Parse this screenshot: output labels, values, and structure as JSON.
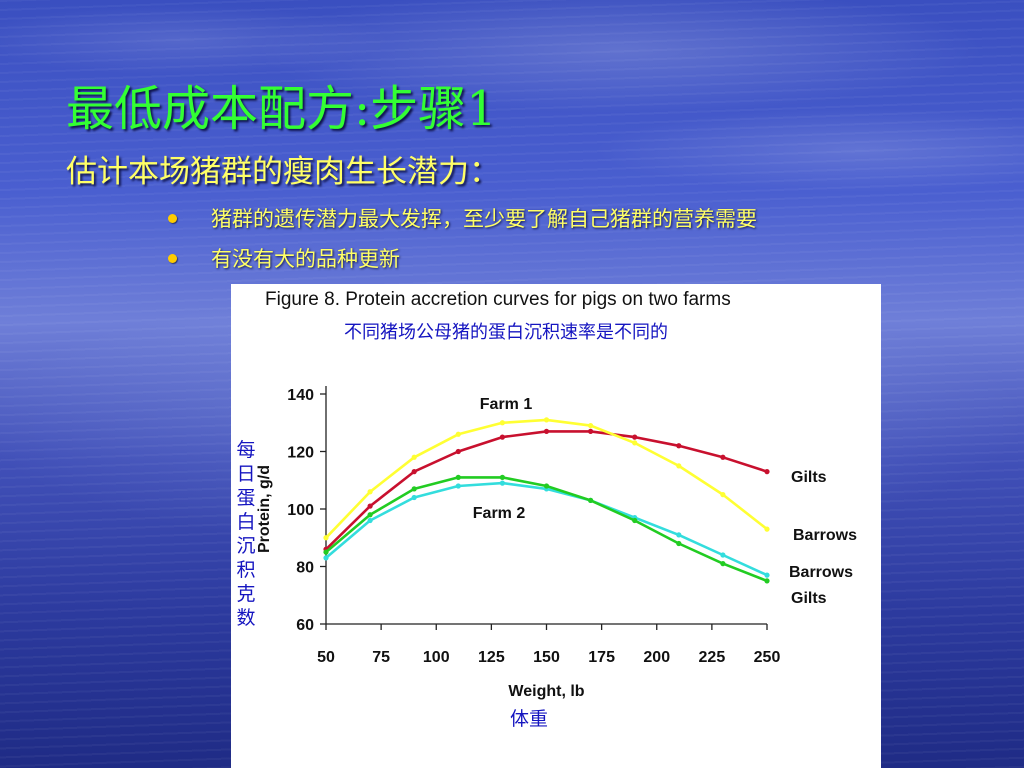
{
  "slide": {
    "title": "最低成本配方:步骤1",
    "subtitle": "估计本场猪群的瘦肉生长潜力：",
    "bullets": [
      "猪群的遗传潜力最大发挥，至少要了解自己猪群的营养需要",
      "有没有大的品种更新"
    ],
    "colors": {
      "title": "#33ff33",
      "subtitle": "#ffff66",
      "bullet_dot": "#ffcc00",
      "annotation": "#1515c0"
    }
  },
  "figure": {
    "title": "Figure 8. Protein accretion curves for pigs on two farms",
    "subtitle_zh": "不同猪场公母猪的蛋白沉积速率是不同的",
    "ylabel_zh": "每日蛋白沉积克数",
    "xlabel_zh": "体重"
  },
  "chart_data": {
    "type": "line",
    "xlabel": "Weight, lb",
    "ylabel": "Protein, g/d",
    "xlim": [
      50,
      250
    ],
    "ylim": [
      60,
      140
    ],
    "xticks": [
      50,
      75,
      100,
      125,
      150,
      175,
      200,
      225,
      250
    ],
    "yticks": [
      60,
      80,
      100,
      120,
      140
    ],
    "grid": false,
    "annotations": [
      "Farm 1",
      "Farm 2"
    ],
    "x": [
      50,
      70,
      90,
      110,
      130,
      150,
      170,
      190,
      210,
      230,
      250
    ],
    "series": [
      {
        "name": "Gilts",
        "group": "Farm 1",
        "color": "#c8102e",
        "values": [
          86,
          101,
          113,
          120,
          125,
          127,
          127,
          125,
          122,
          118,
          113
        ]
      },
      {
        "name": "Barrows",
        "group": "Farm 1",
        "color": "#ffff33",
        "values": [
          90,
          106,
          118,
          126,
          130,
          131,
          129,
          123,
          115,
          105,
          93
        ]
      },
      {
        "name": "Barrows",
        "group": "Farm 2",
        "color": "#33dddd",
        "values": [
          83,
          96,
          104,
          108,
          109,
          107,
          103,
          97,
          91,
          84,
          77
        ]
      },
      {
        "name": "Gilts",
        "group": "Farm 2",
        "color": "#22cc22",
        "values": [
          85,
          98,
          107,
          111,
          111,
          108,
          103,
          96,
          88,
          81,
          75
        ]
      }
    ]
  }
}
